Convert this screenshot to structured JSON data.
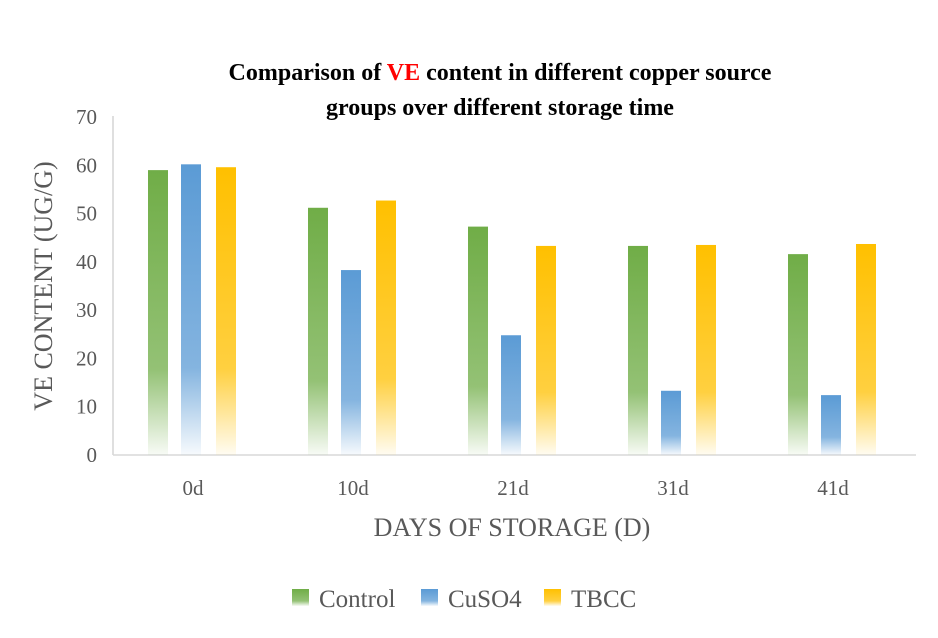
{
  "chart_data": {
    "type": "bar",
    "title_parts": [
      "Comparison of ",
      "VE",
      " content in different copper source"
    ],
    "title_line2": "groups over different storage time",
    "xlabel": "DAYS OF STORAGE (D)",
    "ylabel": "VE CONTENT (UG/G)",
    "categories": [
      "0d",
      "10d",
      "21d",
      "31d",
      "41d"
    ],
    "ylim": [
      0,
      70
    ],
    "yticks": [
      0,
      10,
      20,
      30,
      40,
      50,
      60,
      70
    ],
    "grid": false,
    "legend_position": "bottom",
    "series": [
      {
        "name": "Control",
        "color": "#70ad47",
        "values": [
          59.0,
          51.2,
          47.3,
          43.3,
          41.6
        ]
      },
      {
        "name": "CuSO4",
        "color": "#5b9bd5",
        "values": [
          60.2,
          38.3,
          24.8,
          13.3,
          12.4
        ]
      },
      {
        "name": "TBCC",
        "color": "#ffc000",
        "values": [
          59.6,
          52.7,
          43.3,
          43.5,
          43.7
        ]
      }
    ]
  }
}
